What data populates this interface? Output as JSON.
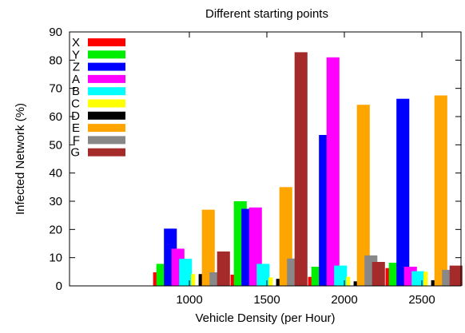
{
  "chart_data": {
    "type": "bar",
    "title": "Different starting points",
    "xlabel": "Vehicle Density (per Hour)",
    "ylabel": "Infected Network (%)",
    "categories": [
      "1000",
      "1500",
      "2000",
      "2500"
    ],
    "ylim": [
      0,
      90
    ],
    "yticks": [
      0,
      10,
      20,
      30,
      40,
      50,
      60,
      70,
      80,
      90
    ],
    "grid": false,
    "legend_position": "top-left",
    "series": [
      {
        "name": "X",
        "color": "#ff0000",
        "values": [
          4.8,
          4.0,
          3.2,
          6.3
        ]
      },
      {
        "name": "Y",
        "color": "#00ee00",
        "values": [
          7.8,
          30.0,
          6.8,
          8.2
        ]
      },
      {
        "name": "Z",
        "color": "#0000ff",
        "values": [
          20.3,
          27.3,
          53.5,
          66.3
        ]
      },
      {
        "name": "A",
        "color": "#ff00ff",
        "values": [
          13.2,
          27.8,
          81.0,
          6.8
        ]
      },
      {
        "name": "B",
        "color": "#00ffff",
        "values": [
          9.6,
          7.8,
          7.2,
          5.2
        ]
      },
      {
        "name": "C",
        "color": "#ffff00",
        "values": [
          4.2,
          3.0,
          3.2,
          5.0
        ]
      },
      {
        "name": "D",
        "color": "#000000",
        "values": [
          4.2,
          2.5,
          1.6,
          2.0
        ]
      },
      {
        "name": "E",
        "color": "#ffa500",
        "values": [
          27.0,
          35.0,
          64.2,
          67.5
        ]
      },
      {
        "name": "F",
        "color": "#888888",
        "values": [
          4.8,
          9.7,
          10.8,
          5.7
        ]
      },
      {
        "name": "G",
        "color": "#a52a2a",
        "values": [
          12.2,
          82.8,
          8.5,
          7.2
        ]
      }
    ]
  }
}
